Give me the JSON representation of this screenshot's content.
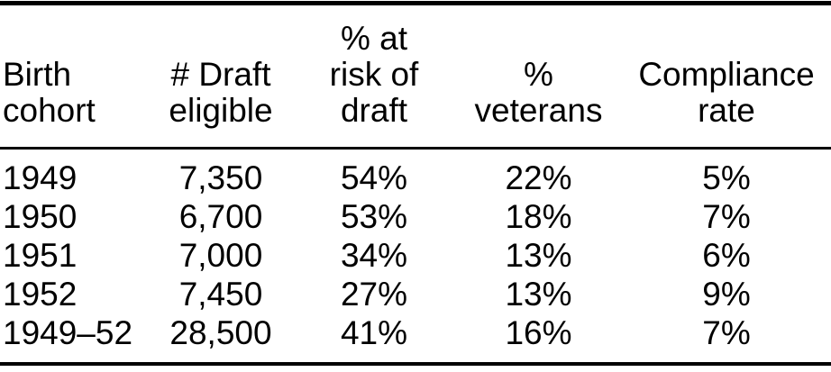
{
  "table": {
    "headers": [
      {
        "text": "Birth\ncohort"
      },
      {
        "text": "# Draft\neligible"
      },
      {
        "text": "% at\nrisk of\ndraft"
      },
      {
        "text": "%\nveterans"
      },
      {
        "text": "Compliance\nrate"
      }
    ],
    "rows": [
      [
        "1949",
        "7,350",
        "54%",
        "22%",
        "5%"
      ],
      [
        "1950",
        "6,700",
        "53%",
        "18%",
        "7%"
      ],
      [
        "1951",
        "7,000",
        "34%",
        "13%",
        "6%"
      ],
      [
        "1952",
        "7,450",
        "27%",
        "13%",
        "9%"
      ],
      [
        "1949–52",
        "28,500",
        "41%",
        "16%",
        "7%"
      ]
    ],
    "colors": {
      "text": "#000000",
      "background": "#ffffff",
      "rule": "#000000"
    }
  }
}
